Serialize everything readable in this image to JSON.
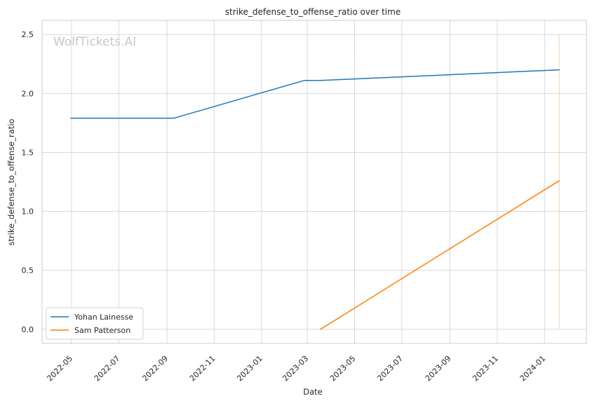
{
  "chart_data": {
    "type": "line",
    "title": "strike_defense_to_offense_ratio over time",
    "xlabel": "Date",
    "ylabel": "strike_defense_to_offense_ratio",
    "watermark": "WolfTickets.AI",
    "grid": true,
    "legend_position": "lower-left",
    "x_ticks": [
      "2022-05",
      "2022-07",
      "2022-09",
      "2022-11",
      "2023-01",
      "2023-03",
      "2023-05",
      "2023-07",
      "2023-09",
      "2023-11",
      "2024-01"
    ],
    "y_ticks": [
      "0.0",
      "0.5",
      "1.0",
      "1.5",
      "2.0",
      "2.5"
    ],
    "xlim": [
      "2022-03-24",
      "2024-02-24"
    ],
    "ylim": [
      -0.12,
      2.62
    ],
    "series": [
      {
        "name": "Yohan Lainesse",
        "color": "#1f77b4",
        "x": [
          "2022-04-30",
          "2022-09-10",
          "2023-02-25",
          "2023-03-18",
          "2024-01-20"
        ],
        "y": [
          1.79,
          1.79,
          2.11,
          2.11,
          2.2
        ]
      },
      {
        "name": "Sam Patterson",
        "color": "#ff7f0e",
        "x": [
          "2023-03-18",
          "2024-01-20"
        ],
        "y": [
          0.0,
          1.26
        ]
      }
    ],
    "vertical_marker": {
      "x": "2024-01-20",
      "ymin": 0.0,
      "ymax": 2.5,
      "color": "#f4d3b8"
    }
  }
}
